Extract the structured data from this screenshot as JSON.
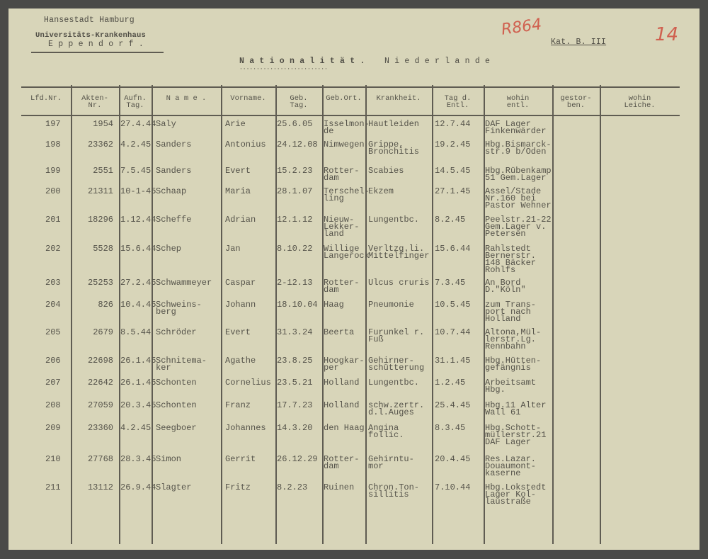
{
  "header": {
    "institution_line1": "Hansestadt Hamburg",
    "institution_line2": "Universitäts-Krankenhaus",
    "institution_line3": "E p p e n d o r f .",
    "nationality_label": "N a t i o n a l i t ä t .",
    "nationality_value": "N i e d e r l a n d e",
    "category": "Kat. B. III",
    "handwritten_ref": "R864",
    "page_number": "14"
  },
  "columns": [
    "Lfd.Nr.",
    "Akten-\nNr.",
    "Aufn.\nTag.",
    "N a m e .",
    "Vorname.",
    "Geb.\nTag.",
    "Geb.Ort.",
    "Krankheit.",
    "Tag d.\nEntl.",
    "wohin\nentl.",
    "gestor-\nben.",
    "wohin\nLeiche."
  ],
  "rows": [
    {
      "nr": "197",
      "akten": "1954",
      "aufn": "27.4.44",
      "name": "Saly",
      "vorname": "Arie",
      "geb_tag": "25.6.05",
      "geb_ort": "Isselmon-\nde",
      "krankheit": "Hautleiden",
      "entl": "12.7.44",
      "wohin": "DAF Lager\nFinkenwärder"
    },
    {
      "nr": "198",
      "akten": "23362",
      "aufn": "4.2.45",
      "name": "Sanders",
      "vorname": "Antonius",
      "geb_tag": "24.12.08",
      "geb_ort": "Nimwegen",
      "krankheit": "Grippe,\nBronchitis",
      "entl": "19.2.45",
      "wohin": "Hbg.Bismarck-\nstr.9 b/Oden"
    },
    {
      "nr": "199",
      "akten": "2551",
      "aufn": "7.5.45",
      "name": "Sanders",
      "vorname": "Evert",
      "geb_tag": "15.2.23",
      "geb_ort": "Rotter-\ndam",
      "krankheit": "Scabies",
      "entl": "14.5.45",
      "wohin": "Hbg.Rübenkamp\n51 Gem.Lager"
    },
    {
      "nr": "200",
      "akten": "21311",
      "aufn": "10-1-45",
      "name": "Schaap",
      "vorname": "Maria",
      "geb_tag": "28.1.07",
      "geb_ort": "Terschel-\nling",
      "krankheit": "Ekzem",
      "entl": "27.1.45",
      "wohin": "Assel/Stade\nNr.160 bei\nPastor Wehner"
    },
    {
      "nr": "201",
      "akten": "18296",
      "aufn": "1.12.44",
      "name": "Scheffe",
      "vorname": "Adrian",
      "geb_tag": "12.1.12",
      "geb_ort": "Nieuw-\nLekker-\nland",
      "krankheit": "Lungentbc.",
      "entl": "8.2.45",
      "wohin": "Peelstr.21-22\nGem.Lager v.\nPetersen"
    },
    {
      "nr": "202",
      "akten": "5528",
      "aufn": "15.6.44",
      "name": "Schep",
      "vorname": "Jan",
      "geb_tag": "8.10.22",
      "geb_ort": "Willige\nLangerock",
      "krankheit": "Verltzg.li.\nMittelfinger",
      "entl": "15.6.44",
      "wohin": "Rahlstedt\nBernerstr.\n148 Bäcker\nRohlfs"
    },
    {
      "nr": "203",
      "akten": "25253",
      "aufn": "27.2.45",
      "name": "Schwammeyer",
      "vorname": "Caspar",
      "geb_tag": "2-12.13",
      "geb_ort": "Rotter-\ndam",
      "krankheit": "Ulcus cruris",
      "entl": "7.3.45",
      "wohin": "An Bord\nD.\"Köln\""
    },
    {
      "nr": "204",
      "akten": "826",
      "aufn": "10.4.45",
      "name": "Schweins-\nberg",
      "vorname": "Johann",
      "geb_tag": "18.10.04",
      "geb_ort": "Haag",
      "krankheit": "Pneumonie",
      "entl": "10.5.45",
      "wohin": "zum Trans-\nport nach\nHolland"
    },
    {
      "nr": "205",
      "akten": "2679",
      "aufn": "8.5.44",
      "name": "Schröder",
      "vorname": "Evert",
      "geb_tag": "31.3.24",
      "geb_ort": "Beerta",
      "krankheit": "Furunkel r.\nFuß",
      "entl": "10.7.44",
      "wohin": "Altona,Mül-\nlerstr.Lg.\nRennbahn"
    },
    {
      "nr": "206",
      "akten": "22698",
      "aufn": "26.1.45",
      "name": "Schnitema-\nker",
      "vorname": "Agathe",
      "geb_tag": "23.8.25",
      "geb_ort": "Hoogkar-\nper",
      "krankheit": "Gehirner-\nschütterung",
      "entl": "31.1.45",
      "wohin": "Hbg.Hütten-\ngefängnis"
    },
    {
      "nr": "207",
      "akten": "22642",
      "aufn": "26.1.45",
      "name": "Schonten",
      "vorname": "Cornelius",
      "geb_tag": "23.5.21",
      "geb_ort": "Holland",
      "krankheit": "Lungentbc.",
      "entl": "1.2.45",
      "wohin": "Arbeitsamt\nHbg."
    },
    {
      "nr": "208",
      "akten": "27059",
      "aufn": "20.3.45",
      "name": "Schonten",
      "vorname": "Franz",
      "geb_tag": "17.7.23",
      "geb_ort": "Holland",
      "krankheit": "schw.zertr.\nd.l.Auges",
      "entl": "25.4.45",
      "wohin": "Hbg.11 Alter\nWall 61"
    },
    {
      "nr": "209",
      "akten": "23360",
      "aufn": "4.2.45",
      "name": "Seegboer",
      "vorname": "Johannes",
      "geb_tag": "14.3.20",
      "geb_ort": "den Haag",
      "krankheit": "Angina\nfollic.",
      "entl": "8.3.45",
      "wohin": "Hbg.Schott-\nmüllerstr.21\nDAF Lager"
    },
    {
      "nr": "210",
      "akten": "27768",
      "aufn": "28.3.45",
      "name": "Simon",
      "vorname": "Gerrit",
      "geb_tag": "26.12.29",
      "geb_ort": "Rotter-\ndam",
      "krankheit": "Gehirntu-\nmor",
      "entl": "20.4.45",
      "wohin": "Res.Lazar.\nDouaumont-\nkaserne"
    },
    {
      "nr": "211",
      "akten": "13112",
      "aufn": "26.9.44",
      "name": "Slagter",
      "vorname": "Fritz",
      "geb_tag": "8.2.23",
      "geb_ort": "Ruinen",
      "krankheit": "Chron.Ton-\nsillitis",
      "entl": "7.10.44",
      "wohin": "Hbg.Lokstedt\nLager Kol-\nlaustraße"
    }
  ]
}
